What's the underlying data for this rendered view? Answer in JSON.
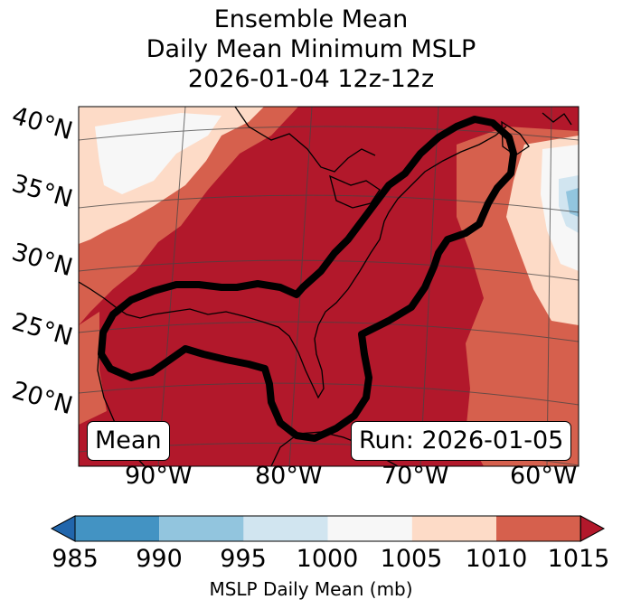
{
  "title": {
    "line1": "Ensemble Mean",
    "line2": "Daily Mean Minimum MSLP",
    "line3": "2026-01-04 12z-12z"
  },
  "map": {
    "lat_labels": [
      "40°N",
      "35°N",
      "30°N",
      "25°N",
      "20°N"
    ],
    "lon_labels": [
      "90°W",
      "80°W",
      "70°W",
      "60°W"
    ],
    "mean_box": "Mean",
    "run_box": "Run: 2026-01-05",
    "fill_colors": {
      "b985": "#4393c3",
      "b990": "#92c5de",
      "b995": "#d1e5f0",
      "b1000": "#f7f7f7",
      "b1005": "#fddbc7",
      "b1010": "#d6604d",
      "b1015": "#b2182b"
    }
  },
  "colorbar": {
    "ticks": [
      "985",
      "990",
      "995",
      "1000",
      "1005",
      "1010",
      "1015"
    ],
    "label": "MSLP Daily Mean (mb)",
    "under_color": "#2166ac",
    "over_color": "#b2182b",
    "band_colors": [
      "#4393c3",
      "#92c5de",
      "#d1e5f0",
      "#f7f7f7",
      "#fddbc7",
      "#d6604d"
    ]
  }
}
